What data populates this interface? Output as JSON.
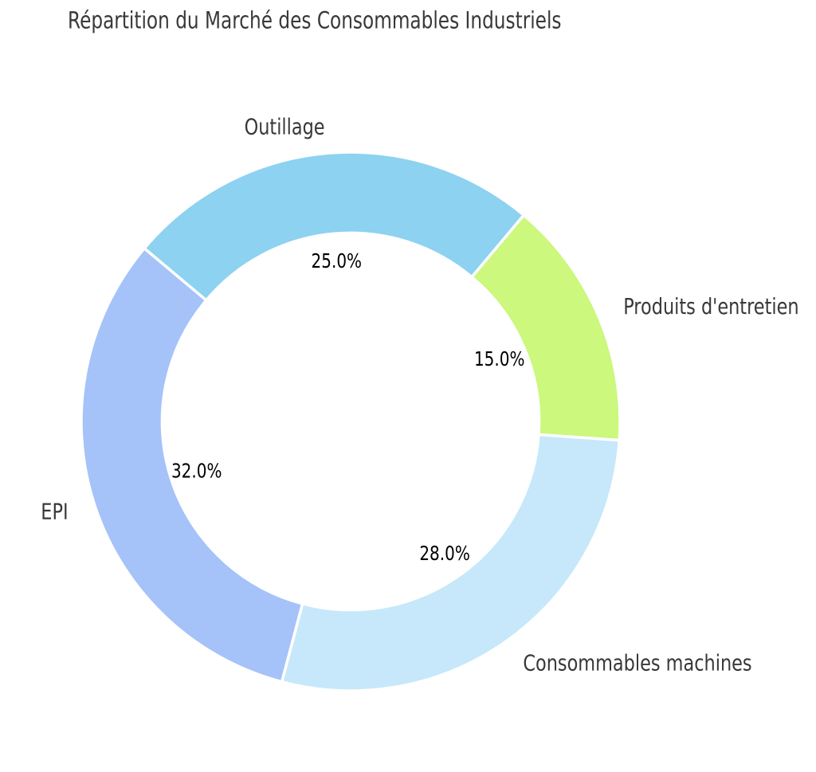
{
  "chart_data": {
    "type": "pie",
    "subtype": "donut",
    "title": "Répartition du Marché des Consommables Industriels",
    "categories": [
      "Outillage",
      "Produits d'entretien",
      "Consommables machines",
      "EPI"
    ],
    "values": [
      25.0,
      15.0,
      28.0,
      32.0
    ],
    "value_labels": [
      "25.0%",
      "15.0%",
      "28.0%",
      "32.0%"
    ],
    "colors": [
      "#8dd2f0",
      "#cbf87d",
      "#c6e8fa",
      "#a5c2f9"
    ],
    "legend": "none",
    "background": "#ffffff",
    "layout": {
      "start_angle_deg": 140,
      "direction": "clockwise",
      "hole_ratio": 0.7,
      "label_distance": 1.1,
      "pct_distance": 0.6,
      "wedge_edge_color": "#ffffff",
      "text_color": "#383838",
      "pct_color": "#000000"
    }
  }
}
